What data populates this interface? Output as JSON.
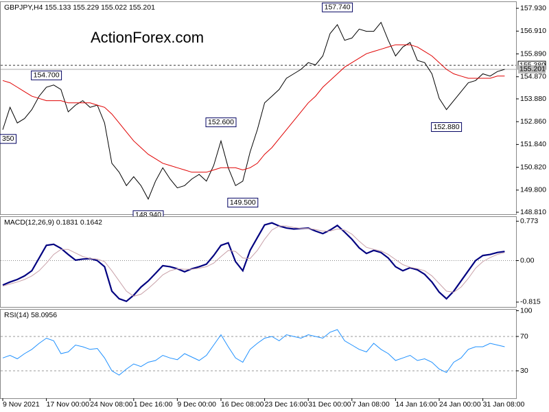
{
  "chart_data": [
    {
      "type": "line",
      "title": "GBPJPY,H4 155.133 155.229 155.022 155.201",
      "watermark": "ActionForex.com",
      "ylim": [
        148.72,
        158.24
      ],
      "yticks": [
        {
          "value": 157.93,
          "label": "157.930"
        },
        {
          "value": 156.91,
          "label": "156.910"
        },
        {
          "value": 155.89,
          "label": "155.890"
        },
        {
          "value": 154.87,
          "label": "154.870"
        },
        {
          "value": 153.88,
          "label": "153.880"
        },
        {
          "value": 152.86,
          "label": "152.860"
        },
        {
          "value": 151.84,
          "label": "151.840"
        },
        {
          "value": 150.82,
          "label": "150.820"
        },
        {
          "value": 149.8,
          "label": "149.800"
        },
        {
          "value": 148.81,
          "label": "148.810"
        }
      ],
      "series": [
        {
          "name": "GBPJPY",
          "color": "#000000",
          "width": 1,
          "values": [
            152.5,
            153.5,
            152.8,
            153.0,
            153.4,
            154.0,
            154.4,
            154.5,
            154.3,
            153.3,
            153.6,
            153.8,
            153.5,
            153.6,
            152.8,
            151.0,
            150.6,
            150.0,
            150.4,
            150.0,
            149.4,
            150.2,
            150.8,
            150.3,
            149.9,
            150.0,
            150.3,
            150.5,
            150.2,
            150.9,
            152.0,
            150.8,
            150.0,
            150.2,
            151.5,
            152.5,
            153.7,
            154.0,
            154.3,
            154.8,
            155.0,
            155.2,
            155.5,
            155.4,
            155.8,
            156.8,
            157.2,
            156.5,
            156.6,
            157.0,
            156.9,
            156.9,
            157.3,
            156.5,
            155.8,
            156.2,
            156.4,
            155.6,
            155.5,
            155.0,
            153.9,
            153.4,
            153.8,
            154.2,
            154.6,
            154.7,
            155.0,
            154.9,
            155.1,
            155.2
          ]
        },
        {
          "name": "MA",
          "color": "#e00000",
          "width": 1,
          "values": [
            154.7,
            154.6,
            154.4,
            154.2,
            154.0,
            153.9,
            153.8,
            153.8,
            153.8,
            153.7,
            153.7,
            153.7,
            153.7,
            153.6,
            153.5,
            153.2,
            152.8,
            152.4,
            152.0,
            151.7,
            151.4,
            151.2,
            151.0,
            150.9,
            150.8,
            150.7,
            150.6,
            150.6,
            150.6,
            150.7,
            150.8,
            150.8,
            150.8,
            150.7,
            150.8,
            151.0,
            151.4,
            151.7,
            152.1,
            152.5,
            152.9,
            153.3,
            153.7,
            154.0,
            154.4,
            154.7,
            155.0,
            155.3,
            155.5,
            155.7,
            155.9,
            156.0,
            156.1,
            156.2,
            156.3,
            156.3,
            156.3,
            156.2,
            156.0,
            155.8,
            155.5,
            155.2,
            155.0,
            154.9,
            154.8,
            154.8,
            154.8,
            154.8,
            154.9,
            154.9
          ]
        }
      ],
      "annotations": [
        {
          "x": 0,
          "y": 152.35,
          "label": "350"
        },
        {
          "x": 6,
          "y": 154.7,
          "label": "154.700"
        },
        {
          "x": 20,
          "y": 148.94,
          "label": "148.940"
        },
        {
          "x": 30,
          "y": 152.6,
          "label": "152.600"
        },
        {
          "x": 33,
          "y": 149.5,
          "label": "149.500"
        },
        {
          "x": 46,
          "y": 157.74,
          "label": "157.740"
        },
        {
          "x": 61,
          "y": 152.88,
          "label": "152.880"
        }
      ],
      "price_lines": [
        {
          "value": 155.38,
          "label": "155.380",
          "style": "dashed"
        },
        {
          "value": 155.201,
          "label": "155.201",
          "style": "solid"
        }
      ]
    },
    {
      "type": "line",
      "title": "MACD(12,26,9) 0.1831 0.1642",
      "ylim": [
        -0.91,
        0.87
      ],
      "yticks": [
        0.773,
        {
          "value": 0,
          "label": "0.00"
        },
        -0.815
      ],
      "zero_line": true,
      "series": [
        {
          "name": "MACD",
          "color": "#000080",
          "width": 2.2,
          "values": [
            -0.48,
            -0.42,
            -0.37,
            -0.3,
            -0.2,
            0.05,
            0.3,
            0.32,
            0.24,
            0.12,
            0.01,
            0.03,
            0.04,
            0.0,
            -0.12,
            -0.6,
            -0.75,
            -0.8,
            -0.68,
            -0.52,
            -0.4,
            -0.25,
            -0.1,
            -0.12,
            -0.16,
            -0.22,
            -0.16,
            -0.12,
            -0.07,
            0.1,
            0.3,
            0.35,
            -0.02,
            -0.2,
            0.2,
            0.45,
            0.7,
            0.74,
            0.68,
            0.64,
            0.62,
            0.63,
            0.64,
            0.58,
            0.53,
            0.6,
            0.69,
            0.56,
            0.42,
            0.25,
            0.14,
            0.2,
            0.16,
            0.05,
            -0.12,
            -0.2,
            -0.14,
            -0.18,
            -0.27,
            -0.42,
            -0.62,
            -0.75,
            -0.6,
            -0.4,
            -0.2,
            0.0,
            0.1,
            0.12,
            0.16,
            0.18
          ]
        },
        {
          "name": "Signal",
          "color": "#c8a0a8",
          "width": 1,
          "values": [
            -0.5,
            -0.46,
            -0.42,
            -0.37,
            -0.3,
            -0.2,
            -0.05,
            0.12,
            0.22,
            0.22,
            0.15,
            0.08,
            0.04,
            0.03,
            -0.02,
            -0.2,
            -0.4,
            -0.6,
            -0.7,
            -0.66,
            -0.55,
            -0.42,
            -0.28,
            -0.2,
            -0.16,
            -0.17,
            -0.17,
            -0.15,
            -0.12,
            -0.05,
            0.08,
            0.2,
            0.18,
            0.05,
            0.04,
            0.2,
            0.42,
            0.6,
            0.68,
            0.68,
            0.65,
            0.63,
            0.63,
            0.61,
            0.58,
            0.58,
            0.62,
            0.6,
            0.52,
            0.38,
            0.26,
            0.22,
            0.19,
            0.12,
            0.02,
            -0.08,
            -0.13,
            -0.16,
            -0.2,
            -0.3,
            -0.45,
            -0.6,
            -0.62,
            -0.52,
            -0.35,
            -0.15,
            -0.02,
            0.06,
            0.12,
            0.16
          ]
        }
      ]
    },
    {
      "type": "line",
      "title": "RSI(14) 58.0956",
      "ylim": [
        -2,
        102
      ],
      "yticks": [
        100,
        70,
        30
      ],
      "level_lines": [
        70,
        30
      ],
      "categories": [
        "9 Nov 2021",
        null,
        null,
        null,
        null,
        null,
        "17 Nov 00:00",
        null,
        null,
        null,
        null,
        null,
        "24 Nov 08:00",
        null,
        null,
        null,
        null,
        null,
        "1 Dec 16:00",
        null,
        null,
        null,
        null,
        null,
        "9 Dec 00:00",
        null,
        null,
        null,
        null,
        null,
        "16 Dec 08:00",
        null,
        null,
        null,
        null,
        null,
        "23 Dec 16:00",
        null,
        null,
        null,
        null,
        null,
        "31 Dec 00:00",
        null,
        null,
        null,
        null,
        null,
        "7 Jan 08:00",
        null,
        null,
        null,
        null,
        null,
        "14 Jan 16:00",
        null,
        null,
        null,
        null,
        null,
        "24 Jan 00:00",
        null,
        null,
        null,
        null,
        null,
        "31 Jan 08:00",
        null,
        null,
        null
      ],
      "series": [
        {
          "name": "RSI",
          "color": "#1e90ff",
          "width": 1,
          "values": [
            45,
            48,
            44,
            50,
            55,
            62,
            68,
            65,
            50,
            52,
            60,
            58,
            55,
            56,
            45,
            30,
            25,
            32,
            38,
            35,
            40,
            42,
            48,
            45,
            43,
            50,
            46,
            42,
            48,
            60,
            72,
            58,
            45,
            40,
            55,
            62,
            68,
            70,
            65,
            72,
            70,
            68,
            72,
            70,
            68,
            75,
            78,
            65,
            60,
            55,
            52,
            62,
            55,
            50,
            42,
            45,
            48,
            42,
            44,
            40,
            32,
            28,
            40,
            45,
            55,
            58,
            58,
            62,
            60,
            58
          ]
        }
      ]
    }
  ]
}
